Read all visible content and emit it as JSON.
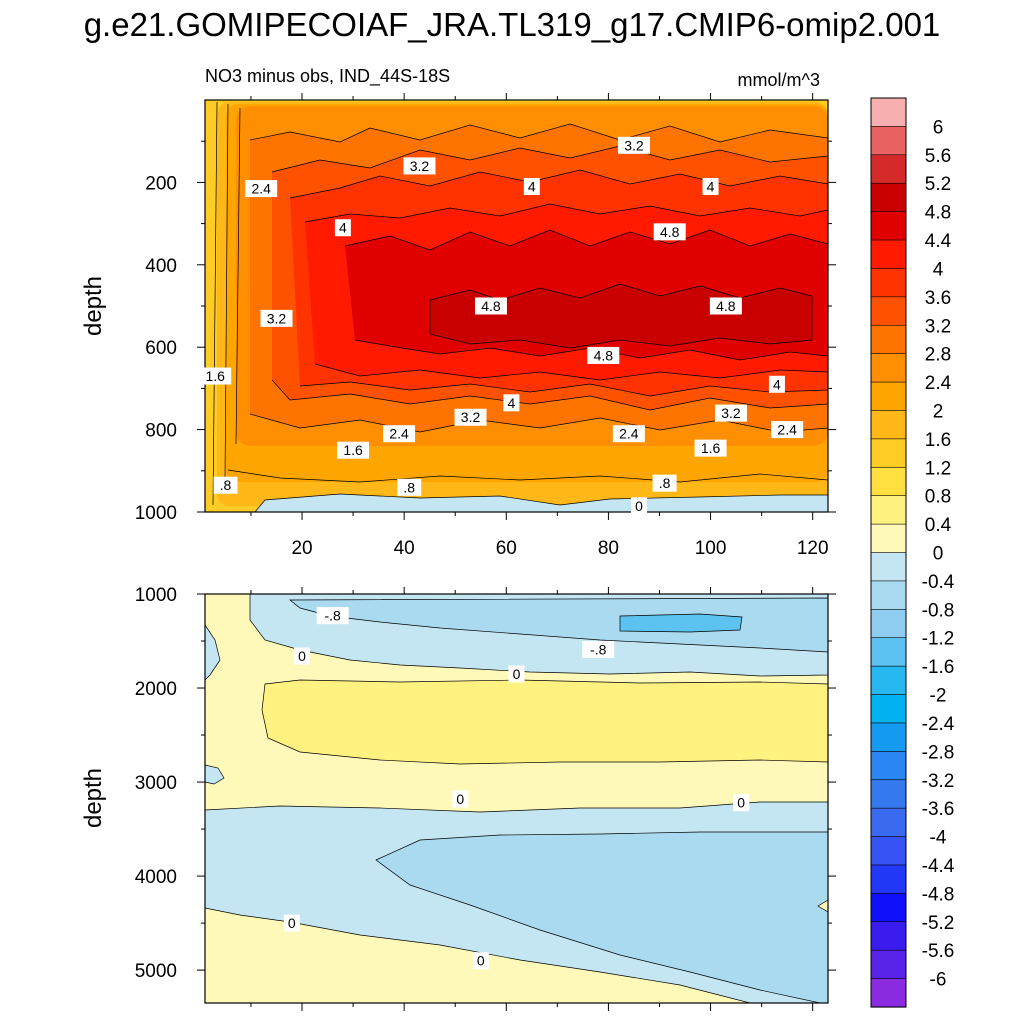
{
  "title": "g.e21.GOMIPECOIAF_JRA.TL319_g17.CMIP6-omip2.001",
  "chart_data": [
    {
      "type": "contour",
      "panel": "upper",
      "subtitle_left": "NO3 minus obs, IND_44S-18S",
      "subtitle_right": "mmol/m^3",
      "ylabel": "depth",
      "xlabel": "",
      "xlim": [
        1,
        123
      ],
      "ylim": [
        1000,
        0
      ],
      "x_ticks": [
        20,
        40,
        60,
        80,
        100,
        120
      ],
      "x_tick_labels": [
        "20",
        "40",
        "60",
        "80",
        "100",
        "120"
      ],
      "y_ticks": [
        200,
        400,
        600,
        800,
        1000
      ],
      "y_tick_labels": [
        "200",
        "400",
        "600",
        "800",
        "1000"
      ],
      "contour_labels": [
        {
          "text": "3.2",
          "x": 85,
          "y": 110
        },
        {
          "text": "3.2",
          "x": 43,
          "y": 160
        },
        {
          "text": "2.4",
          "x": 12,
          "y": 215
        },
        {
          "text": "4",
          "x": 65,
          "y": 210
        },
        {
          "text": "4",
          "x": 100,
          "y": 210
        },
        {
          "text": "4",
          "x": 28,
          "y": 310
        },
        {
          "text": "4.8",
          "x": 92,
          "y": 320
        },
        {
          "text": "3.2",
          "x": 15,
          "y": 530
        },
        {
          "text": "4.8",
          "x": 57,
          "y": 500
        },
        {
          "text": "4.8",
          "x": 103,
          "y": 500
        },
        {
          "text": "1.6",
          "x": 3,
          "y": 670
        },
        {
          "text": "4.8",
          "x": 79,
          "y": 620
        },
        {
          "text": "4",
          "x": 61,
          "y": 735
        },
        {
          "text": "4",
          "x": 113,
          "y": 690
        },
        {
          "text": "3.2",
          "x": 53,
          "y": 770
        },
        {
          "text": "3.2",
          "x": 104,
          "y": 760
        },
        {
          "text": "2.4",
          "x": 39,
          "y": 810
        },
        {
          "text": "2.4",
          "x": 84,
          "y": 810
        },
        {
          "text": "2.4",
          "x": 115,
          "y": 800
        },
        {
          "text": "1.6",
          "x": 30,
          "y": 850
        },
        {
          "text": "1.6",
          "x": 100,
          "y": 845
        },
        {
          "text": ".8",
          "x": 5,
          "y": 935
        },
        {
          "text": ".8",
          "x": 41,
          "y": 940
        },
        {
          "text": ".8",
          "x": 91,
          "y": 930
        },
        {
          "text": "0",
          "x": 86,
          "y": 985
        }
      ]
    },
    {
      "type": "contour",
      "panel": "lower",
      "ylabel": "depth",
      "xlim": [
        1,
        123
      ],
      "ylim": [
        5350,
        1000
      ],
      "x_ticks": [
        20,
        40,
        60,
        80,
        100,
        120
      ],
      "y_ticks": [
        1000,
        2000,
        3000,
        4000,
        5000
      ],
      "y_tick_labels": [
        "1000",
        "2000",
        "3000",
        "4000",
        "5000"
      ],
      "contour_labels": [
        {
          "text": "-.8",
          "x": 26,
          "y": 1230
        },
        {
          "text": "-.8",
          "x": 78,
          "y": 1590
        },
        {
          "text": "0",
          "x": 20,
          "y": 1660
        },
        {
          "text": "0",
          "x": 62,
          "y": 1850
        },
        {
          "text": "0",
          "x": 51,
          "y": 3180
        },
        {
          "text": "0",
          "x": 106,
          "y": 3220
        },
        {
          "text": "0",
          "x": 18,
          "y": 4500
        },
        {
          "text": "0",
          "x": 55,
          "y": 4900
        }
      ]
    },
    {
      "type": "colorbar",
      "labels": [
        "6",
        "5.6",
        "5.2",
        "4.8",
        "4.4",
        "4",
        "3.6",
        "3.2",
        "2.8",
        "2.4",
        "2",
        "1.6",
        "1.2",
        "0.8",
        "0.4",
        "0",
        "-0.4",
        "-0.8",
        "-1.2",
        "-1.6",
        "-2",
        "-2.4",
        "-2.8",
        "-3.2",
        "-3.6",
        "-4",
        "-4.4",
        "-4.8",
        "-5.2",
        "-5.6",
        "-6"
      ],
      "colors": [
        "#f7afb0",
        "#e96262",
        "#d42a2a",
        "#c80000",
        "#e10000",
        "#ff1a00",
        "#ff3300",
        "#ff5200",
        "#ff7400",
        "#ff8f00",
        "#ffa500",
        "#ffb818",
        "#ffcc26",
        "#ffe040",
        "#fff280",
        "#fff9b9",
        "#c4e6f3",
        "#a9daf0",
        "#8ecdf0",
        "#5cc3f0",
        "#27b8f0",
        "#00b2f0",
        "#159af2",
        "#2a86f2",
        "#3479ee",
        "#3a6af0",
        "#3654f4",
        "#2238f7",
        "#1010fa",
        "#3a1cf0",
        "#5a23ea",
        "#8a2be2"
      ]
    }
  ]
}
